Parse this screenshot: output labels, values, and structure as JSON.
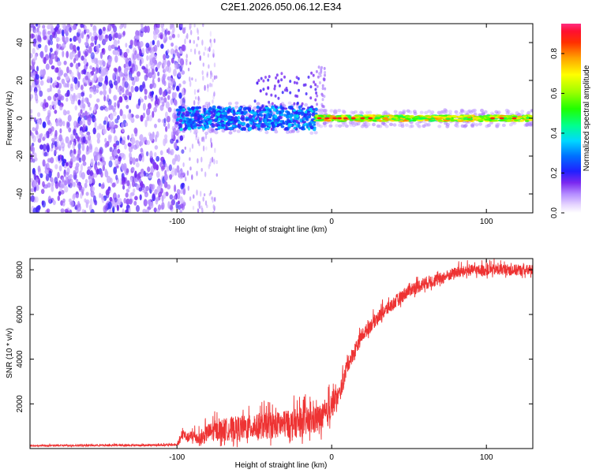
{
  "title": "C2E1.2026.050.06.12.E34",
  "chart_data": [
    {
      "type": "heatmap",
      "name": "spectrogram",
      "xlabel": "Height of straight line (km)",
      "ylabel": "Frequency (Hz)",
      "xlim": [
        -195,
        130
      ],
      "ylim": [
        -50,
        50
      ],
      "xticks": [
        -100,
        0,
        100
      ],
      "yticks": [
        -40,
        -20,
        0,
        20,
        40
      ],
      "colorbar": {
        "label": "Normalized spectral amplitude",
        "range": [
          0,
          0.95
        ],
        "ticks": [
          0.0,
          0.2,
          0.4,
          0.6,
          0.8
        ]
      },
      "regions": [
        {
          "x": [
            -195,
            -95
          ],
          "description": "noise: scattered low-amplitude speckle over full band"
        },
        {
          "x": [
            -95,
            -75
          ],
          "description": "sparse faint speckle"
        },
        {
          "x": [
            -100,
            -10
          ],
          "center_hz": 0,
          "halfwidth_hz": 6,
          "amplitude": 0.3
        },
        {
          "x": [
            -10,
            130
          ],
          "center_hz": 0,
          "halfwidth_hz": 1.5,
          "amplitude": 0.85
        }
      ]
    },
    {
      "type": "line",
      "name": "snr",
      "xlabel": "Height of straight line (km)",
      "ylabel": "SNR (10 * v/v)",
      "xlim": [
        -195,
        130
      ],
      "ylim": [
        0,
        8500
      ],
      "xticks": [
        -100,
        0,
        100
      ],
      "yticks": [
        2000,
        4000,
        6000,
        8000
      ],
      "color": "#ee3333",
      "series": [
        {
          "name": "SNR",
          "x": [
            -195,
            -150,
            -120,
            -100,
            -98,
            -96,
            -93,
            -90,
            -85,
            -80,
            -70,
            -60,
            -50,
            -40,
            -30,
            -20,
            -10,
            -3,
            0,
            2,
            5,
            8,
            10,
            15,
            20,
            30,
            40,
            50,
            60,
            70,
            80,
            90,
            100,
            110,
            120,
            130
          ],
          "y": [
            120,
            130,
            140,
            150,
            350,
            600,
            400,
            500,
            300,
            600,
            700,
            750,
            800,
            850,
            900,
            950,
            1100,
            1300,
            1800,
            2000,
            2300,
            3000,
            3600,
            4300,
            5000,
            5800,
            6400,
            7000,
            7300,
            7500,
            7800,
            7900,
            7900,
            7950,
            7900,
            7900
          ],
          "noise": [
            30,
            40,
            40,
            50,
            150,
            250,
            200,
            300,
            300,
            400,
            500,
            550,
            550,
            600,
            600,
            650,
            650,
            600,
            700,
            500,
            400,
            400,
            350,
            350,
            300,
            300,
            300,
            300,
            300,
            280,
            250,
            250,
            250,
            250,
            250,
            250
          ]
        }
      ]
    }
  ]
}
